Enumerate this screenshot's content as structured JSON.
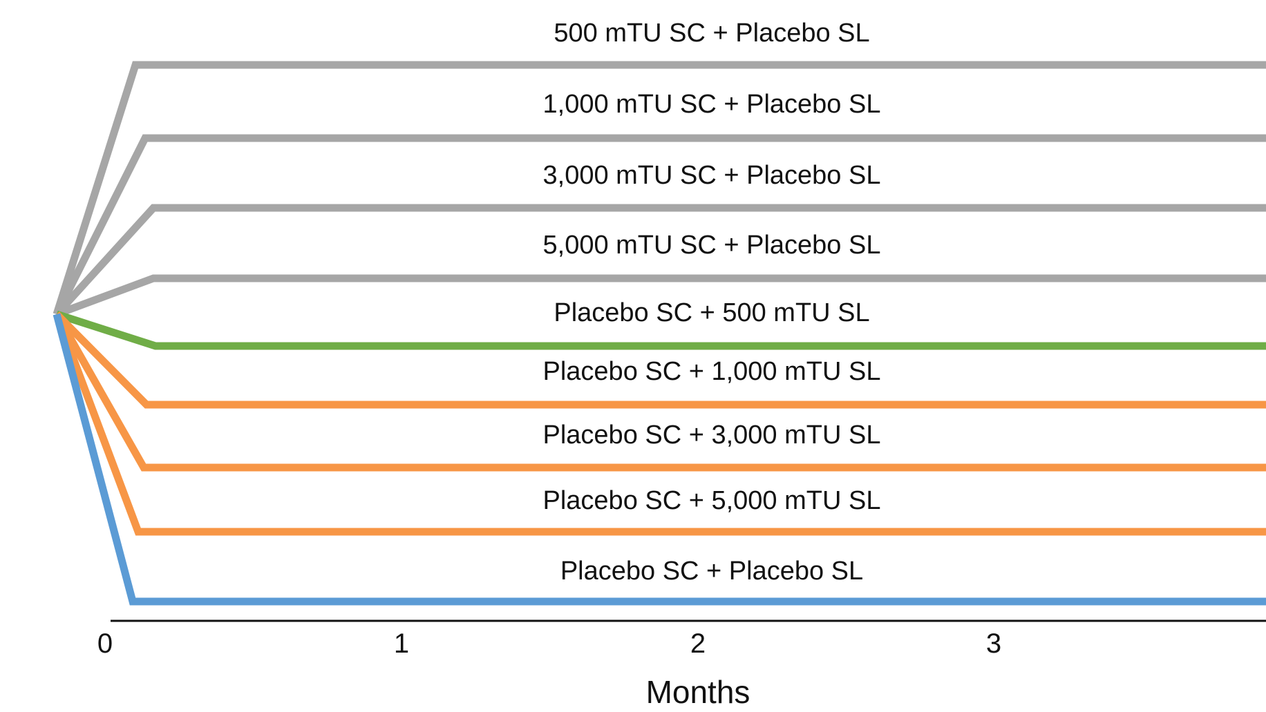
{
  "colors": {
    "sc_active": "#a6a6a6",
    "sl_low": "#70ad47",
    "sl_active": "#f79646",
    "placebo": "#5b9bd5",
    "axis": "#111111"
  },
  "arms": [
    {
      "label": "500 mTU SC + Placebo SL",
      "color": "#a6a6a6"
    },
    {
      "label": "1,000 mTU SC + Placebo SL",
      "color": "#a6a6a6"
    },
    {
      "label": "3,000 mTU SC + Placebo SL",
      "color": "#a6a6a6"
    },
    {
      "label": "5,000 mTU SC + Placebo SL",
      "color": "#a6a6a6"
    },
    {
      "label": "Placebo SC + 500 mTU SL",
      "color": "#70ad47"
    },
    {
      "label": "Placebo SC + 1,000 mTU SL",
      "color": "#f79646"
    },
    {
      "label": "Placebo SC + 3,000 mTU SL",
      "color": "#f79646"
    },
    {
      "label": "Placebo SC + 5,000 mTU SL",
      "color": "#f79646"
    },
    {
      "label": "Placebo SC + Placebo SL",
      "color": "#5b9bd5"
    }
  ],
  "axis": {
    "ticks": [
      "0",
      "1",
      "2",
      "3"
    ],
    "title": "Months"
  }
}
